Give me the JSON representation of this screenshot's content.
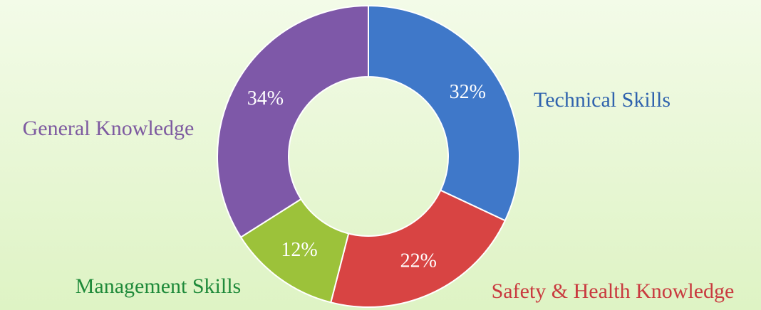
{
  "chart_data": {
    "type": "donut",
    "categories": [
      "Technical Skills",
      "Safety & Health Knowledge",
      "Management Skills",
      "General Knowledge"
    ],
    "values": [
      32,
      22,
      12,
      34
    ],
    "value_labels": [
      "32%",
      "22%",
      "12%",
      "34%"
    ],
    "colors": [
      "#3f78c9",
      "#d84443",
      "#9cc23a",
      "#7e58a8"
    ],
    "label_colors": [
      "#2f62ad",
      "#c93a3f",
      "#1f8a3a",
      "#7d5aa0"
    ]
  }
}
